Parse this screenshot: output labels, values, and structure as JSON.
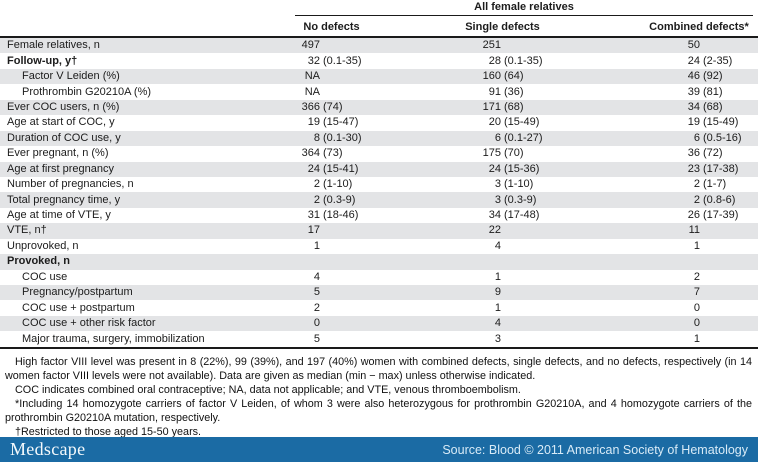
{
  "table": {
    "spanner_header": "All female relatives",
    "columns": [
      "No defects",
      "Single defects",
      "Combined defects*"
    ],
    "rows": [
      {
        "label": "Female relatives, n",
        "bold": false,
        "indent": false,
        "values": [
          "497",
          "251",
          "50"
        ]
      },
      {
        "label": "Follow-up, y†",
        "bold": true,
        "indent": false,
        "values": [
          "32 (0.1-35)",
          "28 (0.1-35)",
          "24 (2-35)"
        ]
      },
      {
        "label": "Factor V Leiden (%)",
        "bold": false,
        "indent": true,
        "values": [
          "NA",
          "160 (64)",
          "46 (92)"
        ]
      },
      {
        "label": "Prothrombin G20210A (%)",
        "bold": false,
        "indent": true,
        "values": [
          "NA",
          "91 (36)",
          "39 (81)"
        ]
      },
      {
        "label": "Ever COC users, n (%)",
        "bold": false,
        "indent": false,
        "values": [
          "366 (74)",
          "171 (68)",
          "34 (68)"
        ]
      },
      {
        "label": "Age at start of COC, y",
        "bold": false,
        "indent": false,
        "values": [
          "19 (15-47)",
          "20 (15-49)",
          "19 (15-49)"
        ]
      },
      {
        "label": "Duration of COC use, y",
        "bold": false,
        "indent": false,
        "values": [
          "8 (0.1-30)",
          "6 (0.1-27)",
          "6 (0.5-16)"
        ]
      },
      {
        "label": "Ever pregnant, n (%)",
        "bold": false,
        "indent": false,
        "values": [
          "364 (73)",
          "175 (70)",
          "36 (72)"
        ]
      },
      {
        "label": "Age at first pregnancy",
        "bold": false,
        "indent": false,
        "values": [
          "24 (15-41)",
          "24 (15-36)",
          "23 (17-38)"
        ]
      },
      {
        "label": "Number of pregnancies, n",
        "bold": false,
        "indent": false,
        "values": [
          "2 (1-10)",
          "3 (1-10)",
          "2 (1-7)"
        ]
      },
      {
        "label": "Total pregnancy time, y",
        "bold": false,
        "indent": false,
        "values": [
          "2 (0.3-9)",
          "3 (0.3-9)",
          "2 (0.8-6)"
        ]
      },
      {
        "label": "Age at time of VTE, y",
        "bold": false,
        "indent": false,
        "values": [
          "31 (18-46)",
          "34 (17-48)",
          "26 (17-39)"
        ]
      },
      {
        "label": "VTE, n†",
        "bold": false,
        "indent": false,
        "values": [
          "17",
          "22",
          "11"
        ]
      },
      {
        "label": "Unprovoked, n",
        "bold": false,
        "indent": false,
        "values": [
          "1",
          "4",
          "1"
        ]
      },
      {
        "label": "Provoked, n",
        "bold": true,
        "indent": false,
        "values": [
          "",
          "",
          ""
        ]
      },
      {
        "label": "COC use",
        "bold": false,
        "indent": true,
        "values": [
          "4",
          "1",
          "2"
        ]
      },
      {
        "label": "Pregnancy/postpartum",
        "bold": false,
        "indent": true,
        "values": [
          "5",
          "9",
          "7"
        ]
      },
      {
        "label": "COC use + postpartum",
        "bold": false,
        "indent": true,
        "values": [
          "2",
          "1",
          "0"
        ]
      },
      {
        "label": "COC use + other risk factor",
        "bold": false,
        "indent": true,
        "values": [
          "0",
          "4",
          "0"
        ]
      },
      {
        "label": "Major trauma, surgery, immobilization",
        "bold": false,
        "indent": true,
        "values": [
          "5",
          "3",
          "1"
        ]
      }
    ]
  },
  "footnotes": [
    "High factor VIII level was present in 8 (22%), 99 (39%), and 197 (40%) women with combined defects, single defects, and no defects, respectively (in 14 women factor VIII levels were not available). Data are given as median (min − max) unless otherwise indicated.",
    "COC indicates combined oral contraceptive; NA, data not applicable; and VTE, venous thromboembolism.",
    "*Including 14 homozygote carriers of factor V Leiden, of whom 3 were also heterozygous for prothrombin G20210A, and 4 homozygote carriers of the prothrombin G20210A mutation, respectively.",
    "†Restricted to those aged 15-50 years."
  ],
  "footer": {
    "brand": "Medscape",
    "source": "Source: Blood © 2011 American Society of Hematology"
  },
  "colors": {
    "stripe": "#e3e4e6",
    "rule": "#1a1a1a",
    "footer_bar": "#1b6ba4",
    "footer_text": "#d8ebf7"
  }
}
